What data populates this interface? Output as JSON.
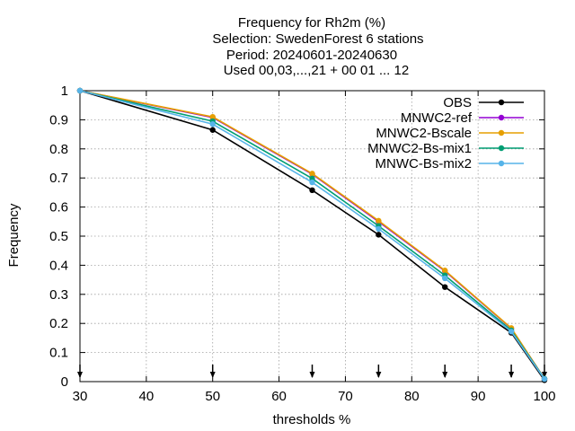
{
  "chart_data": {
    "type": "line",
    "title_lines": [
      "Frequency  for Rh2m (%)",
      "Selection: SwedenForest      6 stations",
      "Period: 20240601-20240630",
      "Used 00,03,...,21 + 00 01 ... 12"
    ],
    "xlabel": "thresholds %",
    "ylabel": "Frequency",
    "xlim": [
      30,
      100
    ],
    "ylim": [
      0,
      1
    ],
    "xticks": [
      30,
      40,
      50,
      60,
      70,
      80,
      90,
      100
    ],
    "yticks": [
      0,
      0.1,
      0.2,
      0.3,
      0.4,
      0.5,
      0.6,
      0.7,
      0.8,
      0.9,
      1
    ],
    "ytick_labels": [
      "0",
      "0.1",
      "0.2",
      "0.3",
      "0.4",
      "0.5",
      "0.6",
      "0.7",
      "0.8",
      "0.9",
      "1"
    ],
    "grid": true,
    "legend_position": "top-right",
    "threshold_arrows": [
      30,
      50,
      65,
      75,
      85,
      95,
      100
    ],
    "x": [
      30,
      50,
      65,
      75,
      85,
      95,
      100
    ],
    "series": [
      {
        "name": "OBS",
        "color": "#000000",
        "values": [
          1.0,
          0.865,
          0.658,
          0.505,
          0.325,
          0.168,
          0.005
        ]
      },
      {
        "name": "MNWC2-ref",
        "color": "#9400d3",
        "values": [
          1.0,
          0.908,
          0.713,
          0.55,
          0.38,
          0.183,
          0.01
        ]
      },
      {
        "name": "MNWC2-Bscale",
        "color": "#e69f00",
        "values": [
          1.0,
          0.91,
          0.715,
          0.553,
          0.382,
          0.184,
          0.01
        ]
      },
      {
        "name": "MNWC2-Bs-mix1",
        "color": "#009e73",
        "values": [
          1.0,
          0.895,
          0.698,
          0.535,
          0.365,
          0.176,
          0.01
        ]
      },
      {
        "name": "MNWC-Bs-mix2",
        "color": "#56b4e9",
        "values": [
          1.0,
          0.885,
          0.685,
          0.525,
          0.355,
          0.172,
          0.009
        ]
      }
    ]
  }
}
